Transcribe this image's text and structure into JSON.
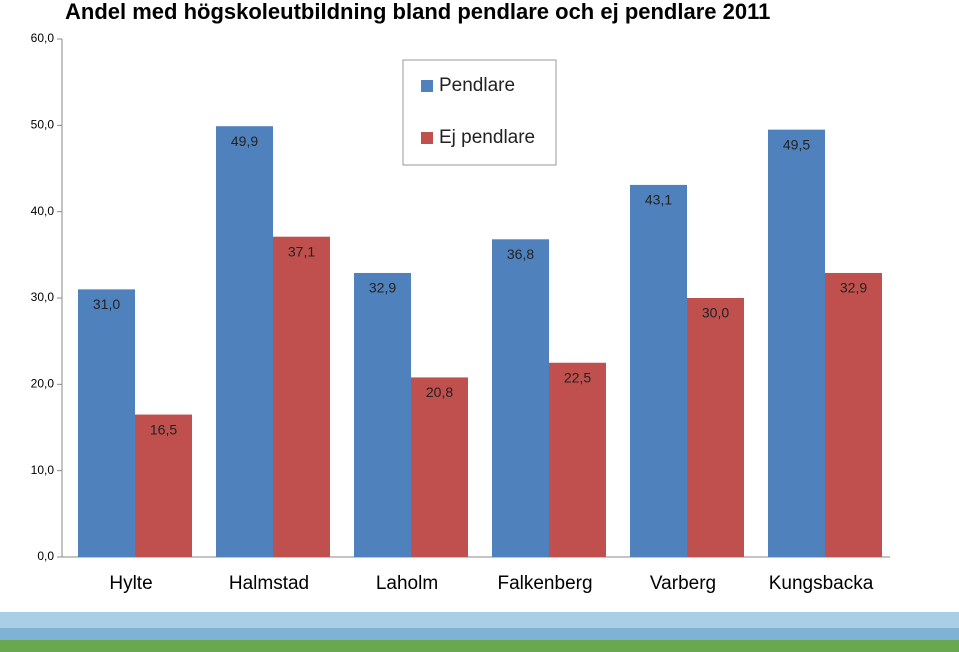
{
  "chart_data": {
    "type": "bar",
    "title": "Andel med högskoleutbildning bland pendlare och ej pendlare 2011",
    "categories": [
      "Hylte",
      "Halmstad",
      "Laholm",
      "Falkenberg",
      "Varberg",
      "Kungsbacka"
    ],
    "series": [
      {
        "name": "Pendlare",
        "color": "#4f81bd",
        "values": [
          31.0,
          49.9,
          32.9,
          36.8,
          43.1,
          49.5
        ],
        "value_labels": [
          "31,0",
          "49,9",
          "32,9",
          "36,8",
          "43,1",
          "49,5"
        ]
      },
      {
        "name": "Ej pendlare",
        "color": "#c0504d",
        "values": [
          16.5,
          37.1,
          20.8,
          22.5,
          30.0,
          32.9
        ],
        "value_labels": [
          "16,5",
          "37,1",
          "20,8",
          "22,5",
          "30,0",
          "32,9"
        ]
      }
    ],
    "ylim": [
      0,
      60
    ],
    "yticks": [
      {
        "value": 0,
        "label": "0,0"
      },
      {
        "value": 10,
        "label": "10,0"
      },
      {
        "value": 20,
        "label": "20,0"
      },
      {
        "value": 30,
        "label": "30,0"
      },
      {
        "value": 40,
        "label": "40,0"
      },
      {
        "value": 50,
        "label": "50,0"
      },
      {
        "value": 60,
        "label": "60,0"
      }
    ],
    "grid": false,
    "legend": "top"
  }
}
